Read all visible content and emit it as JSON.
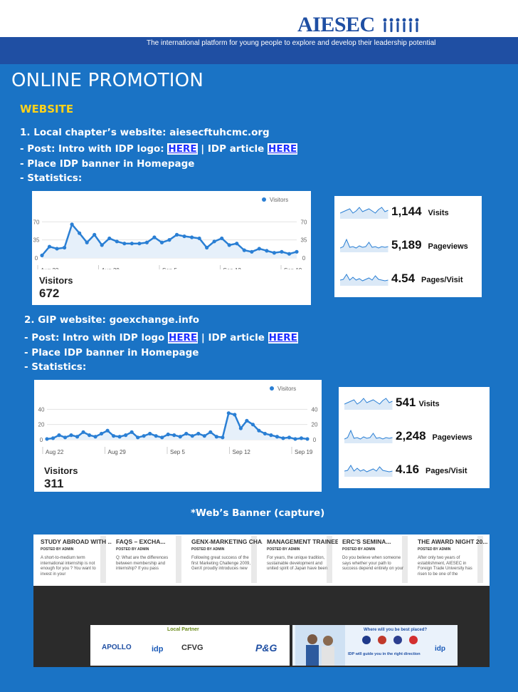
{
  "header": {
    "logo": "AIESEC",
    "tagline": "The international platform for young people to explore and develop their leadership potential"
  },
  "title": "ONLINE PROMOTION",
  "section": "WEBSITE",
  "site1": {
    "heading": "1. Local chapter’s website: aiesecftuhcmc.org",
    "post_prefix": "- Post: Intro with IDP logo: ",
    "link1": "HERE",
    "sep": " | IDP article ",
    "link2": "HERE",
    "place": "- Place IDP banner in Homepage",
    "stats": "- Statistics:"
  },
  "site2": {
    "heading": "2. GIP website: goexchange.info",
    "post_prefix": "- Post: Intro with IDP logo ",
    "link1": "HERE",
    "sep": " | IDP article ",
    "link2": "HERE",
    "place": "- Place IDP banner in Homepage",
    "stats": "- Statistics:"
  },
  "caption": "*Web’s Banner (capture)",
  "chart_data": [
    {
      "type": "line",
      "legend": "Visitors",
      "x_ticks": [
        "Aug 22",
        "Aug 29",
        "Sep 5",
        "Sep 12",
        "Sep 19"
      ],
      "y_ticks": [
        0,
        35,
        70
      ],
      "ylim": [
        0,
        80
      ],
      "values": [
        5,
        22,
        18,
        20,
        65,
        48,
        30,
        45,
        25,
        38,
        32,
        28,
        28,
        28,
        30,
        40,
        30,
        35,
        45,
        42,
        40,
        38,
        20,
        32,
        38,
        25,
        28,
        15,
        12,
        18,
        14,
        10,
        12,
        8,
        12
      ],
      "summary_label": "Visitors",
      "summary_value": "672"
    },
    {
      "type": "line",
      "legend": "Visitors",
      "x_ticks": [
        "Aug 22",
        "Aug 29",
        "Sep 5",
        "Sep 12",
        "Sep 19"
      ],
      "y_ticks": [
        0,
        20,
        40
      ],
      "ylim": [
        0,
        45
      ],
      "values": [
        1,
        2,
        6,
        3,
        6,
        4,
        10,
        6,
        4,
        8,
        12,
        5,
        4,
        6,
        10,
        3,
        5,
        8,
        5,
        3,
        7,
        6,
        4,
        8,
        5,
        8,
        5,
        10,
        4,
        3,
        35,
        33,
        15,
        25,
        20,
        12,
        8,
        6,
        4,
        2,
        3,
        1,
        2,
        1
      ],
      "summary_label": "Visitors",
      "summary_value": "311"
    }
  ],
  "stats1": [
    {
      "value": "1,144",
      "label": "Visits"
    },
    {
      "value": "5,189",
      "label": "Pageviews"
    },
    {
      "value": "4.54",
      "label": "Pages/Visit"
    }
  ],
  "stats2": [
    {
      "value": "541",
      "label": "Visits"
    },
    {
      "value": "2,248",
      "label": "Pageviews"
    },
    {
      "value": "4.16",
      "label": "Pages/Visit"
    }
  ],
  "banner": {
    "posts": [
      {
        "title": "STUDY ABROAD WITH ...",
        "by": "POSTED BY ADMIN",
        "body": "A short-to-medium term international internship is not enough for you ? You want to invest in your"
      },
      {
        "title": "FAQS – EXCHA...",
        "by": "POSTED BY ADMIN",
        "body": "Q: What are the differences between membership and internship? If you pass"
      },
      {
        "title": "GENX-MARKETING CHA...",
        "by": "POSTED BY ADMIN",
        "body": "Following great success of the first Marketing Challenge 2009, GenX proudly introduces new"
      },
      {
        "title": "MANAGEMENT TRAINEE...",
        "by": "POSTED BY ADMIN",
        "body": "For years, the unique tradition, sustainable development and united spirit of Japan have been"
      },
      {
        "title": "ERC’S SEMINA...",
        "by": "POSTED BY ADMIN",
        "body": "Do you believe when someone says whether your path to success depend entirely on your"
      },
      {
        "title": "THE AWARD NIGHT 20...",
        "by": "POSTED BY ADMIN",
        "body": "After only two years of establishment, AIESEC in Foreign Trade University has risen to be one of the"
      }
    ],
    "partner_label": "Local Partner",
    "partners": [
      "APOLLO",
      "idp",
      "CFVG",
      "P&G"
    ],
    "ad_title": "Where will you be best placed?",
    "ad_line": "IDP will guide you in the right direction"
  },
  "colors": {
    "background": "#1a73c5",
    "section": "#ffd21a",
    "chart_line": "#2a7fd4",
    "link": "#1a2cff"
  }
}
